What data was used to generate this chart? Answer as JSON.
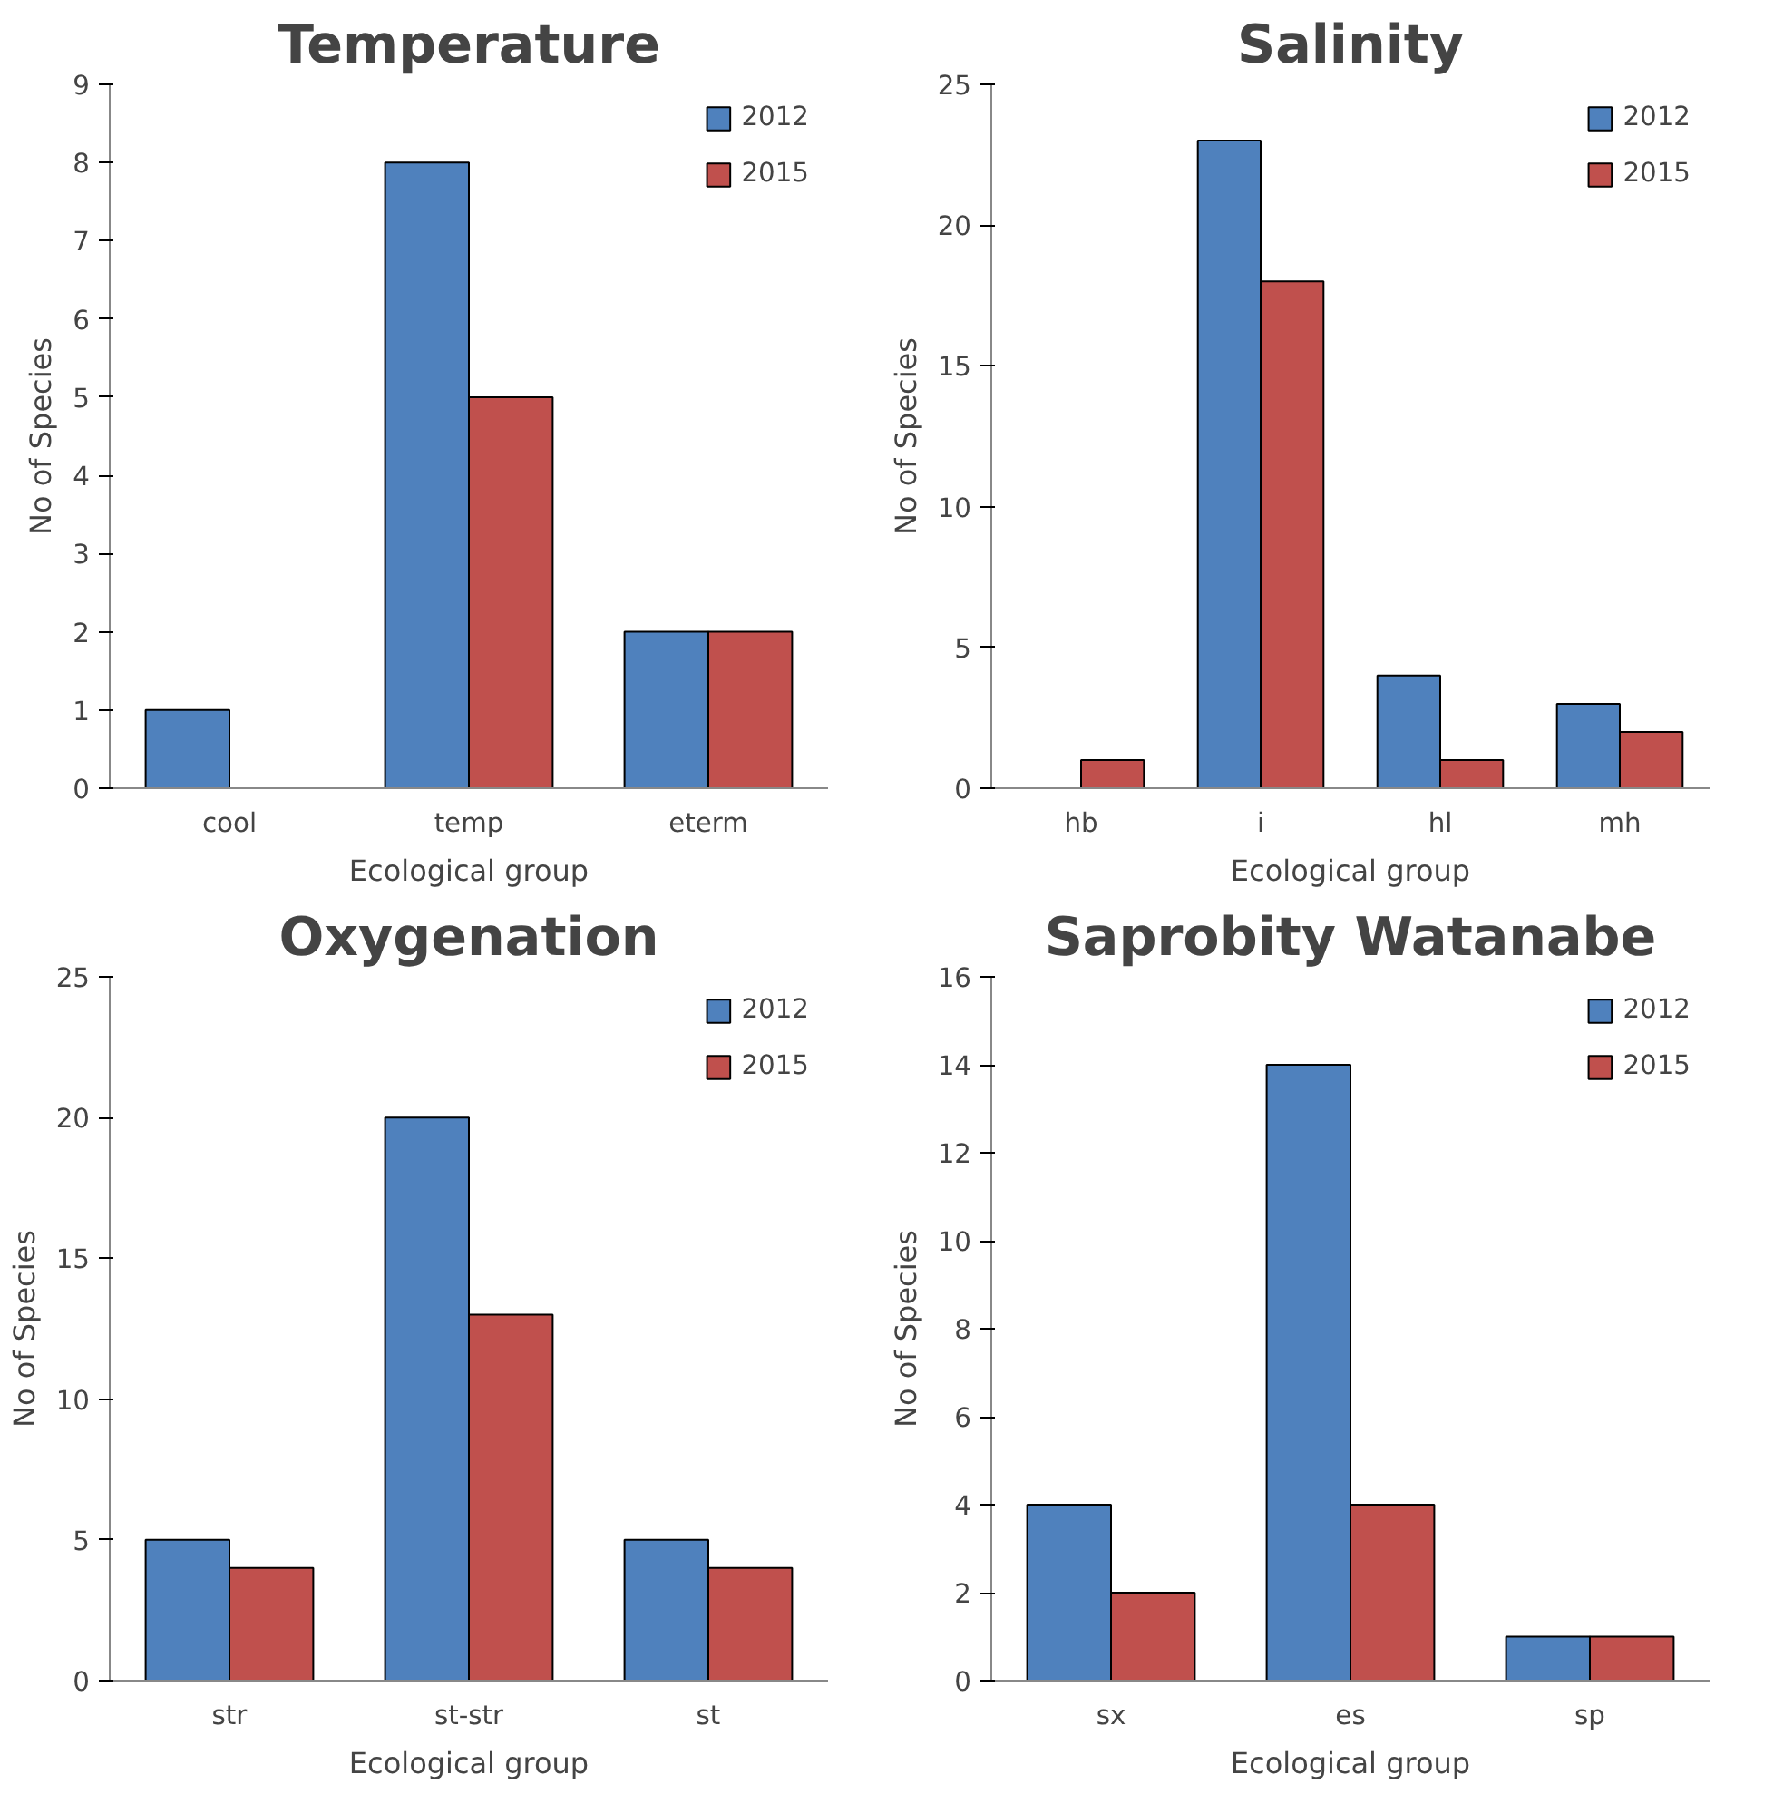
{
  "chart_data": [
    {
      "type": "bar",
      "title": "Temperature",
      "xlabel": "Ecological group",
      "ylabel": "No of Species",
      "categories": [
        "cool",
        "temp",
        "eterm"
      ],
      "series": [
        {
          "name": "2012",
          "color": "#4f81bd",
          "values": [
            1,
            8,
            2
          ]
        },
        {
          "name": "2015",
          "color": "#c0504d",
          "values": [
            null,
            5,
            2
          ]
        }
      ],
      "ylim": [
        0,
        9
      ],
      "yticks": [
        0,
        1,
        2,
        3,
        4,
        5,
        6,
        7,
        8,
        9
      ],
      "grid": false,
      "legend": "top right"
    },
    {
      "type": "bar",
      "title": "Salinity",
      "xlabel": "Ecological group",
      "ylabel": "No of Species",
      "categories": [
        "hb",
        "i",
        "hl",
        "mh"
      ],
      "series": [
        {
          "name": "2012",
          "color": "#4f81bd",
          "values": [
            null,
            23,
            4,
            3
          ]
        },
        {
          "name": "2015",
          "color": "#c0504d",
          "values": [
            1,
            18,
            1,
            2
          ]
        }
      ],
      "ylim": [
        0,
        25
      ],
      "yticks": [
        0,
        5,
        10,
        15,
        20,
        25
      ],
      "grid": false,
      "legend": "top right"
    },
    {
      "type": "bar",
      "title": "Oxygenation",
      "xlabel": "Ecological group",
      "ylabel": "No of Species",
      "categories": [
        "str",
        "st-str",
        "st"
      ],
      "series": [
        {
          "name": "2012",
          "color": "#4f81bd",
          "values": [
            5,
            20,
            5
          ]
        },
        {
          "name": "2015",
          "color": "#c0504d",
          "values": [
            4,
            13,
            4
          ]
        }
      ],
      "ylim": [
        0,
        25
      ],
      "yticks": [
        0,
        5,
        10,
        15,
        20,
        25
      ],
      "grid": false,
      "legend": "top right"
    },
    {
      "type": "bar",
      "title": "Saprobity Watanabe",
      "xlabel": "Ecological group",
      "ylabel": "No of Species",
      "categories": [
        "sx",
        "es",
        "sp"
      ],
      "series": [
        {
          "name": "2012",
          "color": "#4f81bd",
          "values": [
            4,
            14,
            1
          ]
        },
        {
          "name": "2015",
          "color": "#c0504d",
          "values": [
            2,
            4,
            1
          ]
        }
      ],
      "ylim": [
        0,
        16
      ],
      "yticks": [
        0,
        2,
        4,
        6,
        8,
        10,
        12,
        14,
        16
      ],
      "grid": false,
      "legend": "top right"
    }
  ]
}
